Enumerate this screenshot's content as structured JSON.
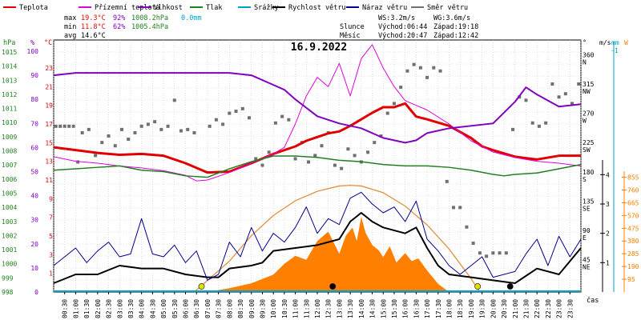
{
  "chart_data": {
    "type": "line",
    "title": "16.9.2022",
    "legend": [
      {
        "name": "Teplota",
        "color": "#e00000"
      },
      {
        "name": "Přízemní teplota",
        "color": "#e000e0"
      },
      {
        "name": "Vlhkost",
        "color": "#8000c0"
      },
      {
        "name": "Tlak",
        "color": "#208020"
      },
      {
        "name": "Srážky",
        "color": "#00a0c8"
      },
      {
        "name": "Rychlost větru",
        "color": "#000000"
      },
      {
        "name": "Náraz větru",
        "color": "#000090"
      },
      {
        "name": "Směr větru",
        "color": "#707070"
      }
    ],
    "stats": {
      "max": {
        "label": "max",
        "temp": "19.3°C",
        "hum": "92%",
        "press": "1008.2hPa",
        "rain": "0.0mm"
      },
      "min": {
        "label": "min",
        "temp": "11.8°C",
        "hum": "62%",
        "press": "1005.4hPa"
      },
      "avg": {
        "label": "avg",
        "temp": "14.6°C"
      }
    },
    "info": {
      "ws": "WS:3.2m/s",
      "wg": "WG:3.6m/s",
      "sun_label": "Slunce",
      "sun_rise": "Východ:06:44",
      "sun_set": "Západ:19:18",
      "moon_label": "Měsíc",
      "moon_rise": "Východ:20:47",
      "moon_set": "Západ:12:42"
    },
    "axis_units": {
      "press": "hPa",
      "hum": "%",
      "temp": "°C",
      "dir": "°",
      "wind": "m/s",
      "rain": "mm",
      "solar": "W",
      "time": "čas"
    },
    "xlim": [
      0,
      24
    ],
    "axes": {
      "press": {
        "range": [
          998,
          1015
        ],
        "ticks": [
          "998",
          "999",
          "1000",
          "1001",
          "1002",
          "1003",
          "1004",
          "1005",
          "1006",
          "1007",
          "1008",
          "1009",
          "1010",
          "1011",
          "1012",
          "1013",
          "1014",
          "1015"
        ]
      },
      "hum": {
        "range": [
          0,
          100
        ],
        "ticks": [
          "0",
          "10",
          "20",
          "30",
          "40",
          "50",
          "60",
          "70",
          "80",
          "90",
          "100"
        ]
      },
      "temp": {
        "range": [
          -1,
          26
        ],
        "ticks": [
          "1",
          "3",
          "5",
          "7",
          "9",
          "11",
          "13",
          "15",
          "17",
          "19",
          "21",
          "23"
        ]
      },
      "dir": {
        "ticks": [
          {
            "v": "45",
            "l": "NE"
          },
          {
            "v": "90",
            "l": "E"
          },
          {
            "v": "135",
            "l": "SE"
          },
          {
            "v": "180",
            "l": "S"
          },
          {
            "v": "225",
            "l": "SW"
          },
          {
            "v": "270",
            "l": "W"
          },
          {
            "v": "315",
            "l": "NW"
          },
          {
            "v": "360",
            "l": "N"
          }
        ]
      },
      "wind": {
        "range": [
          0,
          4.5
        ],
        "ticks": [
          "1",
          "2",
          "3",
          "4"
        ]
      },
      "rain": {
        "ticks": [
          "-1"
        ]
      },
      "solar": {
        "range": [
          0,
          900
        ],
        "ticks": [
          "95",
          "190",
          "285",
          "380",
          "475",
          "570",
          "665",
          "760",
          "855"
        ]
      }
    },
    "x_tick_labels": [
      "00:30",
      "01:00",
      "01:30",
      "02:00",
      "02:30",
      "03:00",
      "03:30",
      "04:00",
      "04:30",
      "05:00",
      "05:30",
      "06:00",
      "06:30",
      "07:00",
      "07:30",
      "08:00",
      "08:30",
      "09:00",
      "09:30",
      "10:00",
      "10:30",
      "11:00",
      "11:30",
      "12:00",
      "12:30",
      "13:00",
      "13:30",
      "14:00",
      "14:30",
      "15:00",
      "15:30",
      "16:00",
      "16:30",
      "17:00",
      "17:30",
      "18:00",
      "18:30",
      "19:00",
      "19:30",
      "20:00",
      "20:30",
      "21:00",
      "21:30",
      "22:00",
      "22:30",
      "23:00",
      "23:30"
    ],
    "series": [
      {
        "name": "Teplota",
        "axis": "temp",
        "color": "#e00000",
        "x": [
          0,
          1,
          2,
          3,
          4,
          5,
          6,
          7,
          8,
          9,
          10,
          11,
          11.5,
          12,
          12.5,
          13,
          13.5,
          14,
          14.5,
          15,
          15.5,
          16,
          16.5,
          17,
          18,
          19,
          19.5,
          20,
          21,
          22,
          23,
          24
        ],
        "y": [
          14.5,
          14.2,
          13.9,
          13.7,
          13.8,
          13.6,
          12.8,
          11.8,
          11.9,
          12.8,
          13.8,
          14.6,
          15.2,
          15.6,
          16.0,
          16.2,
          16.8,
          17.5,
          18.2,
          18.8,
          18.8,
          19.2,
          17.8,
          17.5,
          16.8,
          15.5,
          14.6,
          14.2,
          13.5,
          13.2,
          13.6,
          13.6
        ]
      },
      {
        "name": "Přízemní teplota",
        "axis": "temp",
        "color": "#e000e0",
        "x": [
          0,
          1,
          2,
          3,
          4,
          5,
          6,
          6.5,
          7,
          8,
          9,
          10,
          10.5,
          11,
          11.5,
          12,
          12.5,
          13,
          13.5,
          14,
          14.5,
          15,
          15.5,
          16,
          16.5,
          17,
          18,
          19,
          20,
          21,
          22,
          23,
          24
        ],
        "y": [
          13.5,
          13.0,
          12.8,
          12.5,
          12.3,
          12.0,
          11.5,
          10.9,
          11.0,
          11.8,
          12.8,
          13.8,
          14.5,
          17.0,
          20.0,
          22.0,
          21.0,
          23.5,
          20.0,
          24.0,
          25.5,
          23.0,
          21.0,
          19.5,
          19.0,
          18.5,
          17.0,
          15.2,
          14.0,
          13.4,
          13.0,
          12.8,
          12.5
        ]
      },
      {
        "name": "Vlhkost",
        "axis": "hum",
        "color": "#8000c0",
        "x": [
          0,
          1,
          2,
          3,
          4,
          5,
          6,
          7,
          8,
          9,
          10,
          10.5,
          11,
          12,
          13,
          14,
          15,
          16,
          16.5,
          17,
          18,
          19,
          20,
          21,
          21.5,
          22,
          23,
          24
        ],
        "y": [
          90,
          91,
          91,
          91,
          91,
          91,
          91,
          91,
          91,
          90,
          86,
          84,
          80,
          73,
          70,
          68,
          64,
          62,
          63,
          66,
          68,
          69,
          70,
          79,
          85,
          82,
          77,
          78
        ]
      },
      {
        "name": "Tlak",
        "axis": "press",
        "color": "#208020",
        "x": [
          0,
          1,
          2,
          3,
          4,
          5,
          6,
          7,
          8,
          9,
          10,
          11,
          12,
          13,
          14,
          15,
          16,
          17,
          18,
          19,
          20,
          20.5,
          21,
          22,
          23,
          24
        ],
        "y": [
          1006.6,
          1006.7,
          1006.8,
          1006.9,
          1006.6,
          1006.5,
          1006.2,
          1006.1,
          1006.7,
          1007.2,
          1007.6,
          1007.6,
          1007.5,
          1007.3,
          1007.2,
          1007.0,
          1006.9,
          1006.9,
          1006.8,
          1006.6,
          1006.3,
          1006.2,
          1006.3,
          1006.4,
          1006.7,
          1007.0
        ]
      },
      {
        "name": "Rychlost větru",
        "axis": "wind",
        "color": "#000000",
        "x": [
          0,
          1,
          2,
          3,
          4,
          5,
          6,
          7,
          7.5,
          8,
          9,
          9.5,
          10,
          11,
          12,
          13,
          13.5,
          14,
          14.5,
          15,
          16,
          16.5,
          17,
          17.5,
          18,
          19,
          20,
          21,
          22,
          23,
          24
        ],
        "y": [
          0.3,
          0.6,
          0.6,
          0.9,
          0.8,
          0.8,
          0.6,
          0.5,
          0.5,
          0.8,
          0.9,
          1.0,
          1.4,
          1.5,
          1.6,
          1.8,
          2.4,
          2.7,
          2.4,
          2.2,
          2.0,
          2.2,
          1.5,
          0.9,
          0.6,
          0.5,
          0.4,
          0.3,
          0.8,
          0.6,
          1.5
        ]
      },
      {
        "name": "Náraz větru",
        "axis": "wind",
        "color": "#000090",
        "x": [
          0,
          0.5,
          1,
          1.5,
          2,
          2.5,
          3,
          3.5,
          4,
          4.5,
          5,
          5.5,
          6,
          6.5,
          7,
          7.5,
          8,
          8.5,
          9,
          9.5,
          10,
          10.5,
          11,
          11.5,
          12,
          12.5,
          13,
          13.5,
          14,
          14.5,
          15,
          15.5,
          16,
          16.5,
          17,
          17.5,
          18,
          18.5,
          19,
          19.5,
          20,
          20.5,
          21,
          21.5,
          22,
          22.5,
          23,
          23.5,
          24
        ],
        "y": [
          0.9,
          1.2,
          1.5,
          1.0,
          1.4,
          1.7,
          1.2,
          1.3,
          2.5,
          1.3,
          1.2,
          1.6,
          1.0,
          1.4,
          0.4,
          0.6,
          1.7,
          1.2,
          2.2,
          1.4,
          2.0,
          1.7,
          2.2,
          2.9,
          2.0,
          2.5,
          2.3,
          3.2,
          3.4,
          3.0,
          2.7,
          2.9,
          2.4,
          3.1,
          1.8,
          1.4,
          0.9,
          0.6,
          0.9,
          1.2,
          0.5,
          0.6,
          0.7,
          1.3,
          1.8,
          0.9,
          1.9,
          1.2,
          1.8
        ]
      }
    ],
    "solar": {
      "name": "Sluneční záření",
      "axis": "solar",
      "color": "#ff8000",
      "x": [
        7.0,
        8.0,
        9.0,
        10.0,
        10.5,
        11.0,
        11.5,
        12.0,
        12.5,
        13.0,
        13.3,
        13.6,
        13.8,
        14.0,
        14.2,
        14.5,
        14.8,
        15.0,
        15.3,
        15.6,
        16.0,
        16.3,
        16.6,
        17.0,
        17.5,
        18.0
      ],
      "y": [
        0,
        28,
        65,
        130,
        210,
        270,
        240,
        380,
        450,
        285,
        420,
        480,
        380,
        560,
        440,
        350,
        310,
        260,
        340,
        220,
        290,
        230,
        250,
        160,
        60,
        0
      ]
    },
    "solar_theory": {
      "name": "Teoretické záření",
      "color": "#e09040",
      "x": [
        6.4,
        8,
        9,
        10,
        11,
        12,
        13,
        13.5,
        14,
        15,
        16,
        17,
        18,
        19,
        19.4
      ],
      "y": [
        0,
        230,
        420,
        570,
        680,
        750,
        790,
        795,
        790,
        740,
        640,
        500,
        320,
        100,
        0
      ]
    },
    "direction": {
      "name": "Směr větru",
      "axis": "dir",
      "color": "#707070",
      "x": [
        0.1,
        0.3,
        0.5,
        0.7,
        0.9,
        1.1,
        1.3,
        1.6,
        1.9,
        2.2,
        2.5,
        2.8,
        3.1,
        3.4,
        3.7,
        4.0,
        4.3,
        4.6,
        4.9,
        5.2,
        5.5,
        5.8,
        6.1,
        6.4,
        7.1,
        7.4,
        7.7,
        8.0,
        8.3,
        8.6,
        8.9,
        9.2,
        9.5,
        9.8,
        10.1,
        10.4,
        10.7,
        11.0,
        11.3,
        11.6,
        11.9,
        12.2,
        12.5,
        12.8,
        13.1,
        13.4,
        13.7,
        14.0,
        14.3,
        14.6,
        14.9,
        15.2,
        15.5,
        15.8,
        16.1,
        16.4,
        16.7,
        17.0,
        17.3,
        17.6,
        17.9,
        18.2,
        18.5,
        18.8,
        19.1,
        19.4,
        19.7,
        20.0,
        20.3,
        20.6,
        20.9,
        21.2,
        21.5,
        21.8,
        22.1,
        22.4,
        22.7,
        23.0,
        23.3,
        23.6,
        23.9
      ],
      "y": [
        255,
        255,
        255,
        255,
        255,
        200,
        245,
        250,
        210,
        230,
        240,
        225,
        250,
        235,
        245,
        255,
        258,
        262,
        250,
        255,
        295,
        248,
        250,
        245,
        255,
        265,
        258,
        275,
        278,
        282,
        268,
        205,
        195,
        215,
        260,
        270,
        265,
        205,
        230,
        200,
        210,
        225,
        245,
        195,
        190,
        220,
        210,
        200,
        215,
        230,
        240,
        275,
        290,
        315,
        340,
        350,
        345,
        330,
        345,
        340,
        170,
        130,
        130,
        100,
        75,
        60,
        55,
        60,
        60,
        60,
        250,
        300,
        295,
        260,
        255,
        260,
        320,
        300,
        305,
        290,
        320
      ]
    },
    "markers": [
      {
        "name": "sunrise",
        "x": 6.73,
        "color": "#e0e000"
      },
      {
        "name": "moonset",
        "x": 12.7,
        "color": "#000000"
      },
      {
        "name": "sunset",
        "x": 19.3,
        "color": "#e0e000"
      },
      {
        "name": "moonrise",
        "x": 20.78,
        "color": "#000000"
      }
    ]
  }
}
